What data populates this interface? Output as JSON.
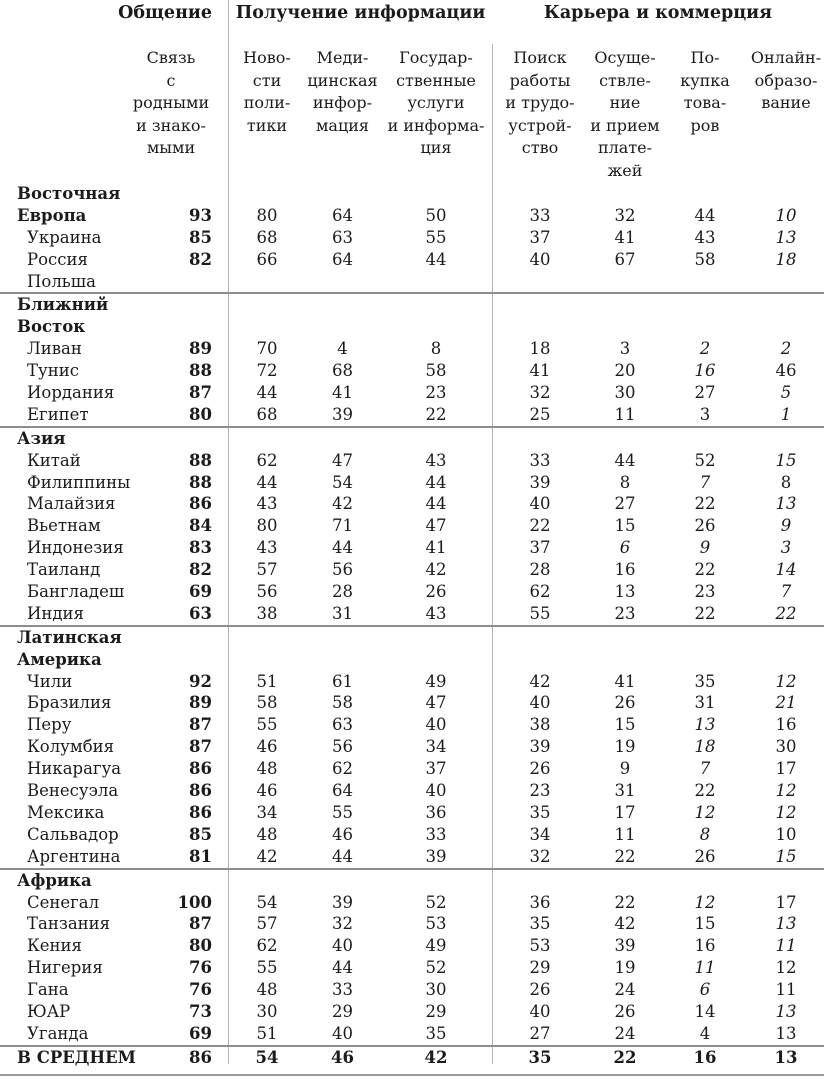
{
  "colors": {
    "text": "#1b1b1b",
    "rule": "#8d8d8d",
    "divider": "#b3b3b3",
    "background": "#ffffff"
  },
  "chart_data": {
    "type": "table",
    "column_groups": [
      "Общение",
      "Получение информации",
      "Карьера и коммерция"
    ],
    "columns": [
      "Связь\nс родными\nи знако-\nмыми",
      "Ново-\nсти\nполи-\nтики",
      "Меди-\nцинская\nинфор-\nмация",
      "Государ-\nственные\nуслуги\nи информа-\nция",
      "Поиск\nработы\nи трудо-\nустрой-\nство",
      "Осуще-\nствле-\nние\nи прием\nплате-\nжей",
      "По-\nкупка\nтова-\nров",
      "Онлайн-\nобразо-\nвание"
    ],
    "sections": [
      {
        "rows": [
          {
            "label": "Восточная",
            "type": "region",
            "values": [
              "",
              "",
              "",
              "",
              "",
              "",
              "",
              ""
            ],
            "em": []
          },
          {
            "label": "Европа",
            "type": "region",
            "values": [
              "93",
              "80",
              "64",
              "50",
              "33",
              "32",
              "44",
              "10"
            ],
            "em": [
              7
            ]
          },
          {
            "label": "Украина",
            "type": "country",
            "values": [
              "85",
              "68",
              "63",
              "55",
              "37",
              "41",
              "43",
              "13"
            ],
            "em": [
              7
            ]
          },
          {
            "label": "Россия",
            "type": "country",
            "values": [
              "82",
              "66",
              "64",
              "44",
              "40",
              "67",
              "58",
              "18"
            ],
            "em": [
              7
            ]
          },
          {
            "label": "Польша",
            "type": "country",
            "values": [
              "",
              "",
              "",
              "",
              "",
              "",
              "",
              ""
            ],
            "em": []
          }
        ]
      },
      {
        "rows": [
          {
            "label": "Ближний",
            "type": "region",
            "values": [
              "",
              "",
              "",
              "",
              "",
              "",
              "",
              ""
            ],
            "em": []
          },
          {
            "label": "Восток",
            "type": "region",
            "values": [
              "",
              "",
              "",
              "",
              "",
              "",
              "",
              ""
            ],
            "em": []
          },
          {
            "label": "Ливан",
            "type": "country",
            "values": [
              "89",
              "70",
              "4",
              "8",
              "18",
              "3",
              "2",
              "2"
            ],
            "em": [
              6,
              7
            ]
          },
          {
            "label": "Тунис",
            "type": "country",
            "values": [
              "88",
              "72",
              "68",
              "58",
              "41",
              "20",
              "16",
              "46"
            ],
            "em": [
              6
            ]
          },
          {
            "label": "Иордания",
            "type": "country",
            "values": [
              "87",
              "44",
              "41",
              "23",
              "32",
              "30",
              "27",
              "5"
            ],
            "em": [
              7
            ]
          },
          {
            "label": "Египет",
            "type": "country",
            "values": [
              "80",
              "68",
              "39",
              "22",
              "25",
              "11",
              "3",
              "1"
            ],
            "em": [
              7
            ]
          }
        ]
      },
      {
        "rows": [
          {
            "label": "Азия",
            "type": "region",
            "values": [
              "",
              "",
              "",
              "",
              "",
              "",
              "",
              ""
            ],
            "em": []
          },
          {
            "label": "Китай",
            "type": "country",
            "values": [
              "88",
              "62",
              "47",
              "43",
              "33",
              "44",
              "52",
              "15"
            ],
            "em": [
              7
            ]
          },
          {
            "label": "Филиппины",
            "type": "country",
            "values": [
              "88",
              "44",
              "54",
              "44",
              "39",
              "8",
              "7",
              "8"
            ],
            "em": [
              6
            ]
          },
          {
            "label": "Малайзия",
            "type": "country",
            "values": [
              "86",
              "43",
              "42",
              "44",
              "40",
              "27",
              "22",
              "13"
            ],
            "em": [
              7
            ]
          },
          {
            "label": "Вьетнам",
            "type": "country",
            "values": [
              "84",
              "80",
              "71",
              "47",
              "22",
              "15",
              "26",
              "9"
            ],
            "em": [
              7
            ]
          },
          {
            "label": "Индонезия",
            "type": "country",
            "values": [
              "83",
              "43",
              "44",
              "41",
              "37",
              "6",
              "9",
              "3"
            ],
            "em": [
              5,
              6,
              7
            ]
          },
          {
            "label": "Таиланд",
            "type": "country",
            "values": [
              "82",
              "57",
              "56",
              "42",
              "28",
              "16",
              "22",
              "14"
            ],
            "em": [
              7
            ]
          },
          {
            "label": "Бангладеш",
            "type": "country",
            "values": [
              "69",
              "56",
              "28",
              "26",
              "62",
              "13",
              "23",
              "7"
            ],
            "em": [
              7
            ]
          },
          {
            "label": "Индия",
            "type": "country",
            "values": [
              "63",
              "38",
              "31",
              "43",
              "55",
              "23",
              "22",
              "22"
            ],
            "em": [
              7
            ]
          }
        ]
      },
      {
        "rows": [
          {
            "label": "Латинская",
            "type": "region",
            "values": [
              "",
              "",
              "",
              "",
              "",
              "",
              "",
              ""
            ],
            "em": []
          },
          {
            "label": "Америка",
            "type": "region",
            "values": [
              "",
              "",
              "",
              "",
              "",
              "",
              "",
              ""
            ],
            "em": []
          },
          {
            "label": "Чили",
            "type": "country",
            "values": [
              "92",
              "51",
              "61",
              "49",
              "42",
              "41",
              "35",
              "12"
            ],
            "em": [
              7
            ]
          },
          {
            "label": "Бразилия",
            "type": "country",
            "values": [
              "89",
              "58",
              "58",
              "47",
              "40",
              "26",
              "31",
              "21"
            ],
            "em": [
              7
            ]
          },
          {
            "label": "Перу",
            "type": "country",
            "values": [
              "87",
              "55",
              "63",
              "40",
              "38",
              "15",
              "13",
              "16"
            ],
            "em": [
              6
            ]
          },
          {
            "label": "Колумбия",
            "type": "country",
            "values": [
              "87",
              "46",
              "56",
              "34",
              "39",
              "19",
              "18",
              "30"
            ],
            "em": [
              6
            ]
          },
          {
            "label": "Никарагуа",
            "type": "country",
            "values": [
              "86",
              "48",
              "62",
              "37",
              "26",
              "9",
              "7",
              "17"
            ],
            "em": [
              6
            ]
          },
          {
            "label": "Венесуэла",
            "type": "country",
            "values": [
              "86",
              "46",
              "64",
              "40",
              "23",
              "31",
              "22",
              "12"
            ],
            "em": [
              7
            ]
          },
          {
            "label": "Мексика",
            "type": "country",
            "values": [
              "86",
              "34",
              "55",
              "36",
              "35",
              "17",
              "12",
              "12"
            ],
            "em": [
              6,
              7
            ]
          },
          {
            "label": "Сальвадор",
            "type": "country",
            "values": [
              "85",
              "48",
              "46",
              "33",
              "34",
              "11",
              "8",
              "10"
            ],
            "em": [
              6
            ]
          },
          {
            "label": "Аргентина",
            "type": "country",
            "values": [
              "81",
              "42",
              "44",
              "39",
              "32",
              "22",
              "26",
              "15"
            ],
            "em": [
              7
            ]
          }
        ]
      },
      {
        "rows": [
          {
            "label": "Африка",
            "type": "region",
            "values": [
              "",
              "",
              "",
              "",
              "",
              "",
              "",
              ""
            ],
            "em": []
          },
          {
            "label": "Сенегал",
            "type": "country",
            "values": [
              "100",
              "54",
              "39",
              "52",
              "36",
              "22",
              "12",
              "17"
            ],
            "em": [
              6
            ]
          },
          {
            "label": "Танзания",
            "type": "country",
            "values": [
              "87",
              "57",
              "32",
              "53",
              "35",
              "42",
              "15",
              "13"
            ],
            "em": [
              7
            ]
          },
          {
            "label": "Кения",
            "type": "country",
            "values": [
              "80",
              "62",
              "40",
              "49",
              "53",
              "39",
              "16",
              "11"
            ],
            "em": [
              7
            ]
          },
          {
            "label": "Нигерия",
            "type": "country",
            "values": [
              "76",
              "55",
              "44",
              "52",
              "29",
              "19",
              "11",
              "12"
            ],
            "em": [
              6
            ]
          },
          {
            "label": "Гана",
            "type": "country",
            "values": [
              "76",
              "48",
              "33",
              "30",
              "26",
              "24",
              "6",
              "11"
            ],
            "em": [
              6
            ]
          },
          {
            "label": "ЮАР",
            "type": "country",
            "values": [
              "73",
              "30",
              "29",
              "29",
              "40",
              "26",
              "14",
              "13"
            ],
            "em": [
              7
            ]
          },
          {
            "label": "Уганда",
            "type": "country",
            "values": [
              "69",
              "51",
              "40",
              "35",
              "27",
              "24",
              "4",
              "13"
            ],
            "em": []
          }
        ]
      },
      {
        "average": true,
        "rows": [
          {
            "label": "В СРЕДНЕМ",
            "type": "average",
            "values": [
              "86",
              "54",
              "46",
              "42",
              "35",
              "22",
              "16",
              "13"
            ],
            "em": []
          }
        ]
      }
    ]
  }
}
